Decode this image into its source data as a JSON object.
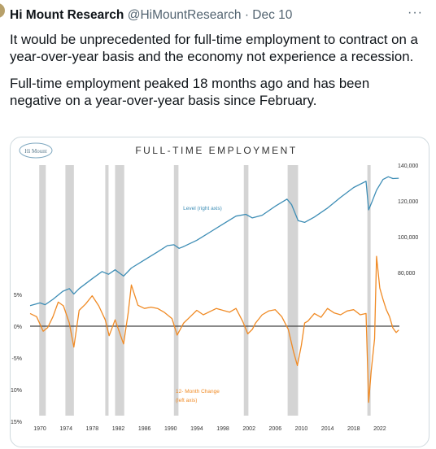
{
  "tweet": {
    "author": "Hi Mount Research",
    "handle": "@HiMountResearch",
    "separator": "·",
    "date": "Dec 10",
    "more_icon": "more-horizontal-icon",
    "text": [
      "It would be unprecedented for full-time employment to contract on a year-over-year basis and the economy not experience a recession.",
      "Full-time employment peaked 18 months ago and has been negative on a year-over-year basis since February."
    ]
  },
  "chart": {
    "logo_text": "Hi Mount",
    "colors": {
      "level": "#3d8db5",
      "change": "#f08a24",
      "recession": "#d4d4d4",
      "axis": "#444444"
    }
  },
  "chart_data": {
    "type": "line",
    "title": "FULL-TIME EMPLOYMENT",
    "x_ticks": [
      "1970",
      "1974",
      "1978",
      "1982",
      "1986",
      "1990",
      "1994",
      "1998",
      "2002",
      "2006",
      "2010",
      "2014",
      "2018",
      "2022"
    ],
    "xlim": [
      1968.5,
      2025
    ],
    "left_axis": {
      "ticks": [
        "5%",
        "0%",
        "-5%",
        "-10%",
        "-15%"
      ],
      "values": [
        5,
        0,
        -5,
        -10,
        -15
      ],
      "ylim": [
        -15,
        7
      ]
    },
    "right_axis": {
      "ticks": [
        "140,000",
        "120,000",
        "100,000",
        "80,000"
      ],
      "values": [
        140000,
        120000,
        100000,
        80000
      ],
      "ylim": [
        46000,
        143000
      ]
    },
    "recessions": [
      [
        1969.9,
        1970.9
      ],
      [
        1973.9,
        1975.2
      ],
      [
        1980.0,
        1980.5
      ],
      [
        1981.5,
        1982.9
      ],
      [
        1990.5,
        1991.2
      ],
      [
        2001.2,
        2001.9
      ],
      [
        2007.9,
        2009.5
      ],
      [
        2020.1,
        2020.4
      ]
    ],
    "series": [
      {
        "name": "Level (right axis)",
        "axis": "right",
        "points": [
          [
            1968.5,
            61500
          ],
          [
            1970,
            63000
          ],
          [
            1970.8,
            62000
          ],
          [
            1972,
            65000
          ],
          [
            1973.5,
            69500
          ],
          [
            1974.5,
            71000
          ],
          [
            1975.2,
            68000
          ],
          [
            1976,
            71000
          ],
          [
            1978,
            76500
          ],
          [
            1979.5,
            80500
          ],
          [
            1980.5,
            79000
          ],
          [
            1981.5,
            81500
          ],
          [
            1982.8,
            78000
          ],
          [
            1984,
            82500
          ],
          [
            1986,
            87000
          ],
          [
            1988,
            91500
          ],
          [
            1989.5,
            95000
          ],
          [
            1990.5,
            95500
          ],
          [
            1991.3,
            93500
          ],
          [
            1992,
            94500
          ],
          [
            1994,
            98000
          ],
          [
            1996,
            102500
          ],
          [
            1998,
            107000
          ],
          [
            2000,
            111500
          ],
          [
            2001.5,
            112500
          ],
          [
            2002.5,
            110500
          ],
          [
            2004,
            112000
          ],
          [
            2006,
            117000
          ],
          [
            2007.8,
            121000
          ],
          [
            2008.5,
            118000
          ],
          [
            2009.5,
            109000
          ],
          [
            2010.5,
            108000
          ],
          [
            2012,
            111000
          ],
          [
            2014,
            116000
          ],
          [
            2016,
            122000
          ],
          [
            2018,
            127500
          ],
          [
            2019.9,
            131000
          ],
          [
            2020.3,
            115000
          ],
          [
            2020.8,
            119500
          ],
          [
            2021.5,
            126000
          ],
          [
            2022.5,
            132000
          ],
          [
            2023.3,
            133500
          ],
          [
            2024,
            132500
          ],
          [
            2024.9,
            132700
          ]
        ]
      },
      {
        "name": "12-Month Change (left axis)",
        "axis": "left",
        "points": [
          [
            1968.5,
            2
          ],
          [
            1969.5,
            1.5
          ],
          [
            1970.5,
            -0.8
          ],
          [
            1971.2,
            -0.2
          ],
          [
            1972,
            1.5
          ],
          [
            1972.8,
            3.8
          ],
          [
            1973.6,
            3.2
          ],
          [
            1974.5,
            0.5
          ],
          [
            1975.2,
            -3.3
          ],
          [
            1976,
            2.5
          ],
          [
            1977,
            3.5
          ],
          [
            1978,
            4.8
          ],
          [
            1979,
            3.2
          ],
          [
            1980,
            1
          ],
          [
            1980.6,
            -1.5
          ],
          [
            1981.5,
            1
          ],
          [
            1982.8,
            -2.8
          ],
          [
            1983.5,
            2
          ],
          [
            1984,
            6.5
          ],
          [
            1985,
            3.3
          ],
          [
            1986,
            2.8
          ],
          [
            1987,
            3
          ],
          [
            1988,
            2.8
          ],
          [
            1989,
            2.2
          ],
          [
            1990.2,
            1.2
          ],
          [
            1991,
            -1.4
          ],
          [
            1992,
            0.5
          ],
          [
            1993,
            1.5
          ],
          [
            1994,
            2.5
          ],
          [
            1995,
            1.8
          ],
          [
            1996,
            2.3
          ],
          [
            1997,
            2.8
          ],
          [
            1998,
            2.5
          ],
          [
            1999,
            2.2
          ],
          [
            2000,
            2.8
          ],
          [
            2001,
            0.8
          ],
          [
            2001.8,
            -1.2
          ],
          [
            2002.5,
            -0.5
          ],
          [
            2003,
            0.5
          ],
          [
            2004,
            1.8
          ],
          [
            2005,
            2.4
          ],
          [
            2006,
            2.6
          ],
          [
            2007,
            1.5
          ],
          [
            2008,
            -0.5
          ],
          [
            2008.8,
            -4
          ],
          [
            2009.4,
            -6.2
          ],
          [
            2010,
            -3
          ],
          [
            2010.5,
            0.5
          ],
          [
            2011,
            0.8
          ],
          [
            2012,
            2
          ],
          [
            2013,
            1.4
          ],
          [
            2014,
            2.8
          ],
          [
            2015,
            2.1
          ],
          [
            2016,
            1.8
          ],
          [
            2017,
            2.4
          ],
          [
            2018,
            2.6
          ],
          [
            2019,
            1.8
          ],
          [
            2019.9,
            2
          ],
          [
            2020.3,
            -12
          ],
          [
            2020.7,
            -7
          ],
          [
            2021.2,
            -2
          ],
          [
            2021.5,
            11
          ],
          [
            2022,
            6
          ],
          [
            2022.5,
            4.2
          ],
          [
            2023,
            2.6
          ],
          [
            2023.5,
            1.5
          ],
          [
            2024,
            -0.3
          ],
          [
            2024.5,
            -1
          ],
          [
            2024.9,
            -0.6
          ]
        ]
      }
    ],
    "annotations": [
      {
        "text": "Level (right axis)",
        "color": "#3d8db5"
      },
      {
        "text": "12- Month Change",
        "color": "#f08a24"
      },
      {
        "text": "(left axis)",
        "color": "#f08a24"
      }
    ],
    "grid": false
  }
}
